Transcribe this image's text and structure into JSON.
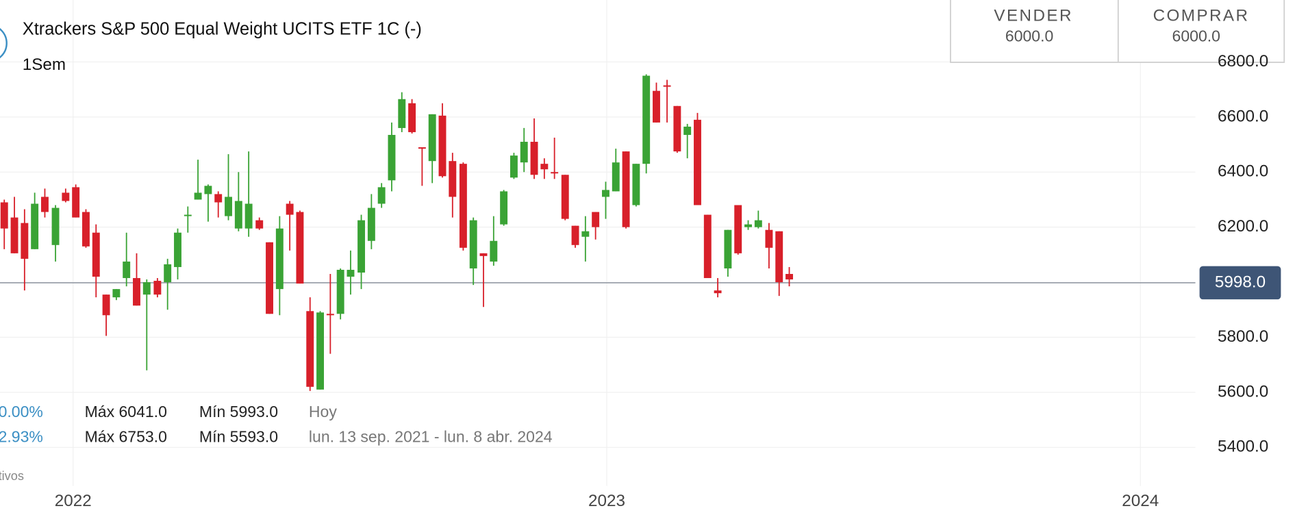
{
  "header": {
    "title": "Xtrackers S&P 500 Equal Weight UCITS ETF 1C (-)",
    "interval": "1Sem"
  },
  "quote": {
    "sell_label": "VENDER",
    "sell_price": "6000.0",
    "buy_label": "COMPRAR",
    "buy_price": "6000.0"
  },
  "stats": [
    {
      "change": "0.00%",
      "max": "Máx 6041.0",
      "min": "Mín 5993.0",
      "period": "Hoy"
    },
    {
      "change": "2.93%",
      "max": "Máx 6753.0",
      "min": "Mín 5593.0",
      "period": "lun. 13 sep. 2021 - lun. 8 abr. 2024"
    }
  ],
  "footer_fragment": "tivos",
  "chart_data": {
    "type": "candlestick",
    "up_color": "#3aa335",
    "down_color": "#d8202a",
    "grid": true,
    "xlim": [
      2021.863,
      2024.103
    ],
    "xticks": [
      2022,
      2023,
      2024
    ],
    "ylim": [
      5260,
      7025
    ],
    "yticks": [
      {
        "value": 5400,
        "label": "5400.0"
      },
      {
        "value": 5600,
        "label": "5600.0"
      },
      {
        "value": 5800,
        "label": "5800.0"
      },
      {
        "value": 6200,
        "label": "6200.0"
      },
      {
        "value": 6400,
        "label": "6400.0"
      },
      {
        "value": 6600,
        "label": "6600.0"
      },
      {
        "value": 6800,
        "label": "6800.0"
      }
    ],
    "last_price": {
      "value": 5998,
      "label": "5998.0"
    },
    "x": [
      2021.871,
      2021.89,
      2021.909,
      2021.928,
      2021.947,
      2021.967,
      2021.986,
      2022.005,
      2022.024,
      2022.043,
      2022.062,
      2022.081,
      2022.1,
      2022.119,
      2022.138,
      2022.158,
      2022.177,
      2022.196,
      2022.215,
      2022.234,
      2022.253,
      2022.272,
      2022.291,
      2022.31,
      2022.329,
      2022.349,
      2022.368,
      2022.387,
      2022.406,
      2022.425,
      2022.444,
      2022.463,
      2022.482,
      2022.501,
      2022.52,
      2022.54,
      2022.559,
      2022.578,
      2022.597,
      2022.616,
      2022.635,
      2022.654,
      2022.673,
      2022.692,
      2022.711,
      2022.731,
      2022.75,
      2022.769,
      2022.788,
      2022.807,
      2022.826,
      2022.845,
      2022.864,
      2022.883,
      2022.902,
      2022.922,
      2022.941,
      2022.96,
      2022.979,
      2022.998,
      2023.017,
      2023.036,
      2023.055,
      2023.074,
      2023.093,
      2023.113,
      2023.132,
      2023.151,
      2023.17,
      2023.189,
      2023.208,
      2023.227,
      2023.246,
      2023.265,
      2023.284,
      2023.304,
      2023.323,
      2023.342
    ],
    "open": [
      6290,
      6235,
      6215,
      6120,
      6310,
      6135,
      6325,
      6345,
      6255,
      6180,
      5955,
      5945,
      6015,
      6015,
      5955,
      6005,
      6000,
      6055,
      6240,
      6300,
      6320,
      6320,
      6240,
      6195,
      6195,
      6225,
      6145,
      5975,
      6285,
      6255,
      5895,
      5610,
      5885,
      5885,
      6020,
      6035,
      6150,
      6285,
      6370,
      6560,
      6650,
      6490,
      6440,
      6605,
      6440,
      6430,
      6050,
      6105,
      6075,
      6210,
      6380,
      6435,
      6510,
      6430,
      6400,
      6390,
      6205,
      6165,
      6255,
      6310,
      6330,
      6475,
      6280,
      6430,
      6695,
      6715,
      6640,
      6535,
      6590,
      6245,
      5970,
      6050,
      6280,
      6200,
      6200,
      6190,
      6185,
      6030
    ],
    "high": [
      6300,
      6310,
      6265,
      6325,
      6340,
      6280,
      6340,
      6355,
      6265,
      6210,
      5955,
      5975,
      6180,
      6105,
      6010,
      6015,
      6085,
      6195,
      6275,
      6445,
      6355,
      6330,
      6465,
      6400,
      6475,
      6235,
      6145,
      6240,
      6295,
      6260,
      5945,
      5895,
      6030,
      6050,
      6115,
      6245,
      6320,
      6360,
      6580,
      6690,
      6665,
      6490,
      6610,
      6650,
      6470,
      6435,
      6235,
      6105,
      6240,
      6335,
      6470,
      6560,
      6595,
      6450,
      6525,
      6390,
      6205,
      6240,
      6255,
      6365,
      6485,
      6475,
      6430,
      6755,
      6725,
      6735,
      6640,
      6575,
      6615,
      6245,
      6015,
      6190,
      6280,
      6225,
      6260,
      6215,
      6185,
      6055
    ],
    "low": [
      6120,
      6105,
      5970,
      6120,
      6235,
      6075,
      6290,
      6235,
      6125,
      5945,
      5805,
      5935,
      5985,
      5915,
      5680,
      5945,
      5900,
      6010,
      6180,
      6300,
      6220,
      6235,
      6225,
      6185,
      6165,
      6190,
      5885,
      5880,
      6115,
      5995,
      5605,
      5610,
      5740,
      5865,
      5955,
      5975,
      6120,
      6270,
      6330,
      6545,
      6540,
      6350,
      6360,
      6380,
      6235,
      6115,
      5990,
      5910,
      6060,
      6205,
      6375,
      6400,
      6375,
      6375,
      6375,
      6225,
      6125,
      6075,
      6155,
      6230,
      6330,
      6195,
      6275,
      6395,
      6580,
      6580,
      6470,
      6450,
      6280,
      6015,
      5945,
      6020,
      6100,
      6190,
      6195,
      6050,
      5950,
      5985
    ],
    "close": [
      6195,
      6105,
      6085,
      6285,
      6255,
      6270,
      6295,
      6235,
      6130,
      6020,
      5880,
      5975,
      6075,
      5915,
      6000,
      5955,
      6065,
      6180,
      6245,
      6325,
      6350,
      6290,
      6310,
      6295,
      6285,
      6195,
      5885,
      6195,
      6245,
      5995,
      5620,
      5890,
      5880,
      6045,
      6045,
      6225,
      6270,
      6345,
      6535,
      6665,
      6545,
      6485,
      6610,
      6385,
      6310,
      6125,
      6225,
      6095,
      6150,
      6330,
      6460,
      6510,
      6390,
      6410,
      6395,
      6230,
      6135,
      6185,
      6200,
      6335,
      6435,
      6200,
      6430,
      6750,
      6580,
      6710,
      6475,
      6565,
      6280,
      6015,
      5960,
      6190,
      6105,
      6210,
      6225,
      6125,
      6000,
      6010
    ]
  }
}
